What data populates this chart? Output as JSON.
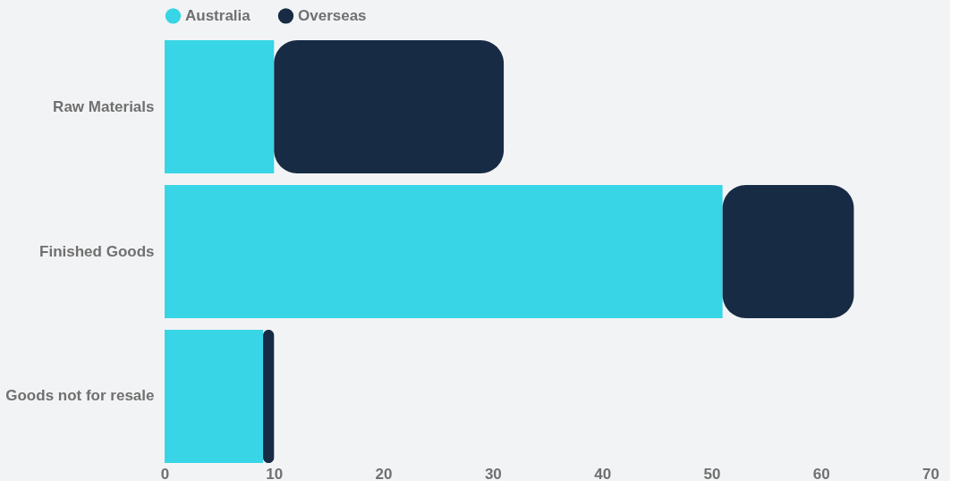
{
  "chart_data": {
    "type": "bar",
    "orientation": "horizontal",
    "stacked": true,
    "categories": [
      "Raw Materials",
      "Finished Goods",
      "Goods not for resale"
    ],
    "series": [
      {
        "name": "Australia",
        "color": "#37d5e6",
        "values": [
          10,
          51,
          9
        ]
      },
      {
        "name": "Overseas",
        "color": "#172b45",
        "values": [
          21,
          12,
          1
        ]
      }
    ],
    "xlim": [
      0,
      70
    ],
    "xticks": [
      0,
      10,
      20,
      30,
      40,
      50,
      60,
      70
    ],
    "grid": false,
    "legend": "top"
  }
}
